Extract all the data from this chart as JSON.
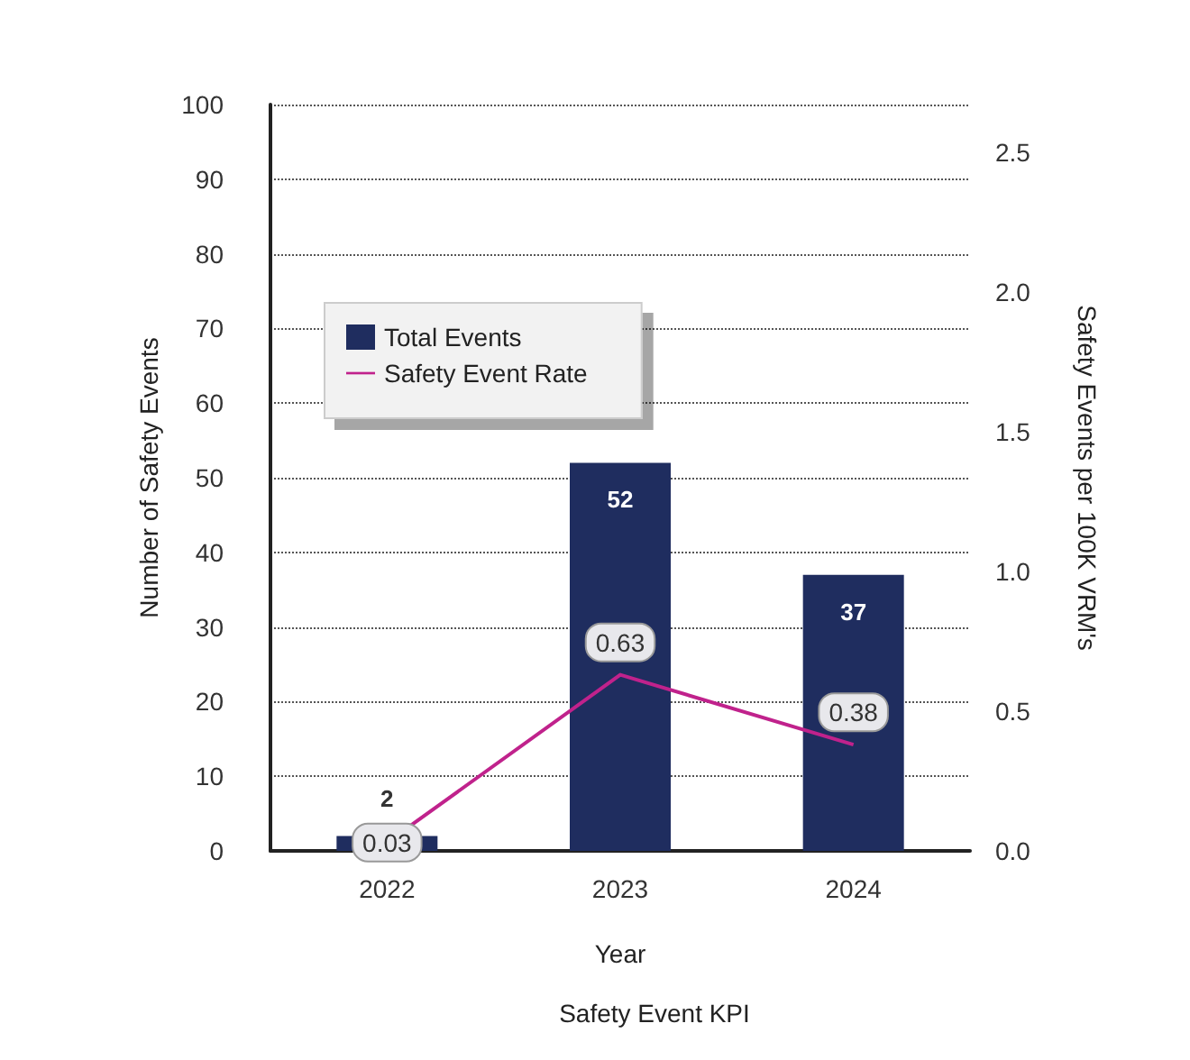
{
  "chart_data": {
    "type": "bar",
    "title": "Safety Event KPI",
    "xlabel": "Year",
    "ylabel": "Number of Safety Events",
    "y2label": "Safety Events per 100K VRM's",
    "categories": [
      "2022",
      "2023",
      "2024"
    ],
    "series": [
      {
        "name": "Total Events",
        "color": "#1f2d5f",
        "values": [
          2,
          52,
          37
        ]
      },
      {
        "name": "Safety Event Rate",
        "type": "line",
        "axis": "y2",
        "color": "#c0228c",
        "values": [
          0.03,
          0.63,
          0.38
        ]
      }
    ],
    "ylim": [
      0,
      100
    ],
    "yticks": [
      0,
      10,
      20,
      30,
      40,
      50,
      60,
      70,
      80,
      90,
      100
    ],
    "y2lim": [
      0,
      2.67
    ],
    "y2ticks": [
      {
        "value": 0,
        "label": "0.0"
      },
      {
        "value": 0.5,
        "label": "0.5"
      },
      {
        "value": 1,
        "label": "1.0"
      },
      {
        "value": 1.5,
        "label": "1.5"
      },
      {
        "value": 2,
        "label": "2.0"
      },
      {
        "value": 2.5,
        "label": "2.5"
      }
    ],
    "grid": "y",
    "legend": "top left",
    "data_labels": true,
    "marker": "none"
  }
}
